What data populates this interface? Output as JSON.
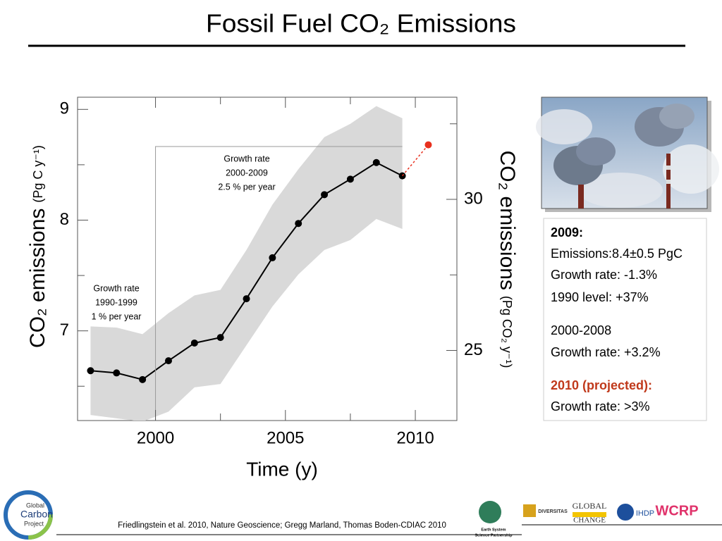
{
  "chart_data": {
    "type": "line",
    "title": "Fossil Fuel CO₂ Emissions",
    "xlabel": "Time (y)",
    "ylabel": "CO₂ emissions",
    "ylabel_unit": "(Pg C y⁻¹)",
    "y2label": "CO₂ emissions",
    "y2label_unit": "(Pg CO₂ y⁻¹)",
    "x": [
      1997.5,
      1998.5,
      1999.5,
      2000.5,
      2001.5,
      2002.5,
      2003.5,
      2004.5,
      2005.5,
      2006.5,
      2007.5,
      2008.5,
      2009.5
    ],
    "series": [
      {
        "color": "#000000",
        "values": [
          6.64,
          6.62,
          6.56,
          6.73,
          6.89,
          6.94,
          7.29,
          7.66,
          7.97,
          8.23,
          8.37,
          8.52,
          8.4
        ]
      }
    ],
    "band": {
      "color": "#d9d9d9",
      "upper": [
        7.04,
        7.03,
        6.97,
        7.16,
        7.32,
        7.37,
        7.73,
        8.14,
        8.46,
        8.75,
        8.87,
        9.03,
        8.92
      ],
      "lower": [
        6.24,
        6.21,
        6.18,
        6.27,
        6.49,
        6.52,
        6.87,
        7.22,
        7.51,
        7.73,
        7.82,
        8.01,
        7.92
      ]
    },
    "projection": {
      "x": 2010.5,
      "value": 8.68,
      "color": "#e8301e"
    },
    "xlim": [
      1997,
      2011.6
    ],
    "xticks": [
      2000,
      2005,
      2010
    ],
    "xminor_ticks": [
      2002.5,
      2007.5
    ],
    "ylim": [
      6.19,
      9.11
    ],
    "yticks": [
      7,
      8,
      9
    ],
    "yminor_ticks": [
      6.5,
      7.5,
      8.5
    ],
    "y2lim": [
      22.68,
      33.38
    ],
    "y2ticks": [
      25,
      30
    ],
    "y2minor_ticks": [
      27.5,
      32.5
    ],
    "annotations": [
      {
        "lines": [
          "Growth rate",
          "1990-1999",
          "1 % per year"
        ]
      },
      {
        "lines": [
          "Growth rate",
          "2000-2009",
          "2.5 % per year"
        ]
      }
    ]
  },
  "info_box": {
    "heading": "2009:",
    "lines": [
      "Emissions:8.4±0.5 PgC",
      "Growth rate: -1.3%",
      "1990 level: +37%"
    ],
    "period": "2000-2008",
    "period_line": "Growth rate: +3.2%",
    "projected": "2010 (projected):",
    "projected_line": "Growth rate: >3%"
  },
  "footer": {
    "citation": "Friedlingstein et al. 2010, Nature Geoscience; Gregg Marland, Thomas Boden-CDIAC 2010",
    "logo_left": [
      "Global",
      "Carbon",
      "Project"
    ],
    "logos_right": [
      "DIVERSITAS",
      "GLOBAL",
      "CHANGE",
      "IHDP",
      "WCRP",
      "Earth System",
      "Science Partnership"
    ]
  }
}
